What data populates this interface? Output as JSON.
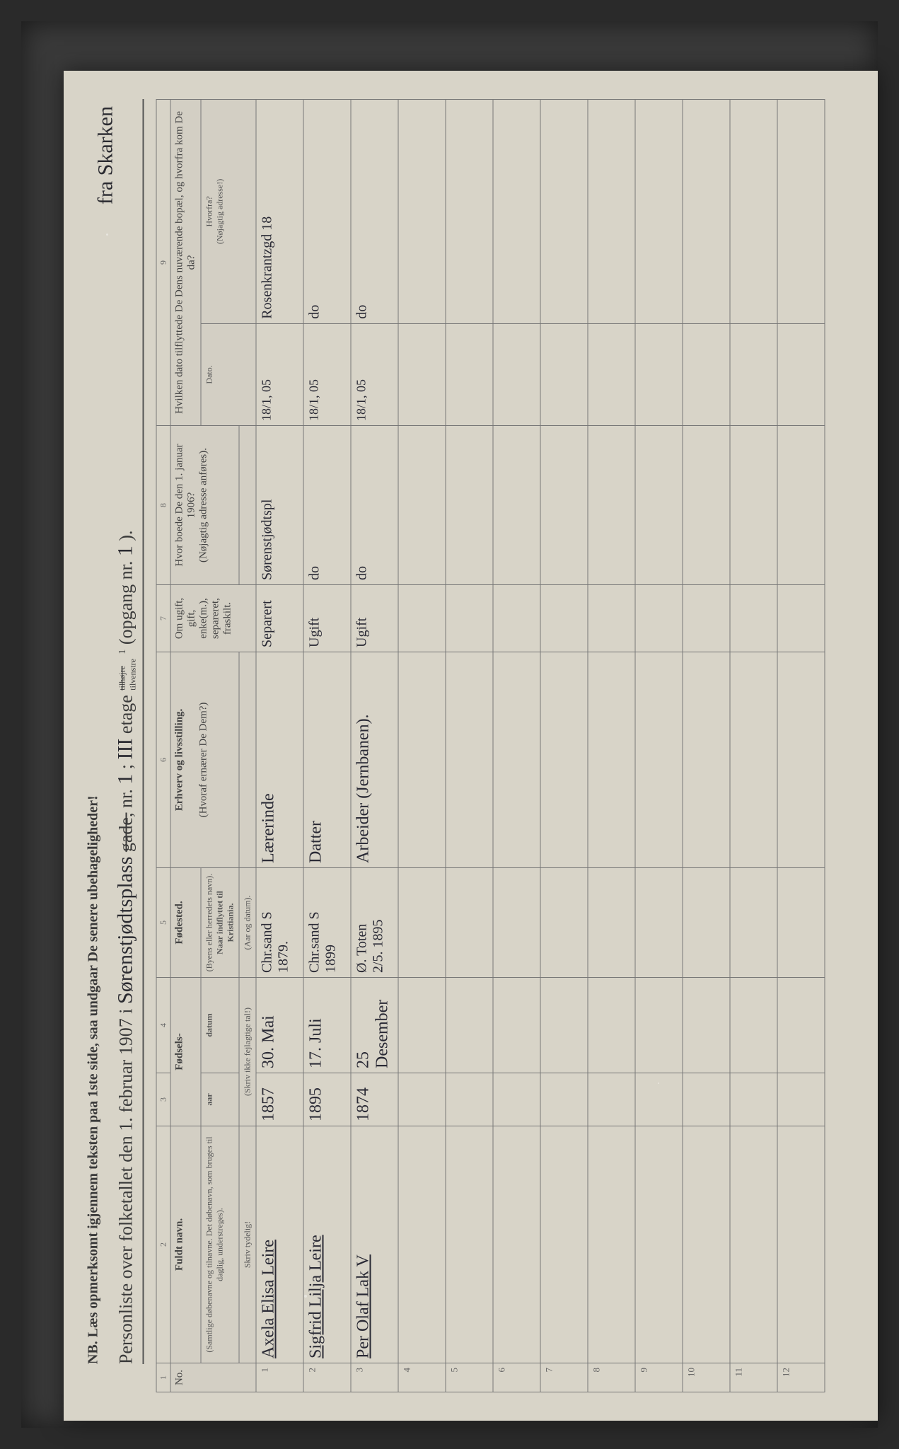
{
  "nb": "NB. Læs opmerksomt igjennem teksten paa 1ste side, saa undgaar De senere ubehageligheder!",
  "title": {
    "prefix": "Personliste over folketallet den 1. februar 1907 i ",
    "street_hand": "Sørenstjødtsplass",
    "gade_strike": "gade,",
    "nr_label": " nr. ",
    "nr_hand": "1",
    "semicolon": " ; ",
    "etage_hand": "III",
    "etage_label": " etage ",
    "tilhoire_strike": "tilhøjre",
    "tilvenstre": "tilvenstre",
    "opgang_label": " (opgang nr. ",
    "opgang_hand": "1",
    "opgang_close": " ).",
    "annotation": "fra Skarken"
  },
  "columns": {
    "c1": "1",
    "c2": "2",
    "c3": "3",
    "c4": "4",
    "c5": "5",
    "c6": "6",
    "c7": "7",
    "c8": "8",
    "c9": "9",
    "no": "No.",
    "name": "Fuldt navn.",
    "name_sub": "(Samtlige døbenavne og tilnavne. Det døbenavn, som bruges til daglig, understreges).",
    "name_skriv": "Skriv tydelig!",
    "birth": "Fødsels-",
    "birth_yr": "aar",
    "birth_dt": "datum",
    "birth_sub": "(Skriv ikke fejlagtige tal!)",
    "place": "Fødested.",
    "place_sub1": "(Byens eller herredets navn).",
    "place_sub2": "Naar indflyttet til Kristiania.",
    "place_sub3": "(Aar og datum).",
    "occ": "Erhverv og livsstilling.",
    "occ_sub": "(Hvoraf ernærer De Dem?)",
    "mar": "Om ugift, gift, enke(m.), separeret, fraskilt.",
    "addr": "Hvor boede De den 1. januar 1906?",
    "addr_sub": "(Nøjagtig adresse anføres).",
    "moved": "Hvilken dato tilflyttede De Dens nuværende bopæl, og hvorfra kom De da?",
    "moved_d": "Dato.",
    "moved_f": "Hvorfra?",
    "moved_f_sub": "(Nøjagtig adresse!)"
  },
  "rows": [
    {
      "no": "1",
      "name": "Axela Elisa Leire",
      "yr": "1857",
      "dt": "30. Mai",
      "place": "Chr.sand S\n1879.",
      "occ": "Lærerinde",
      "mar": "Separert",
      "addr": "Sørenstjødtspl",
      "mdate": "18/1, 05",
      "mfrom": "Rosenkrantzgd 18"
    },
    {
      "no": "2",
      "name": "Sigfrid Lilja Leire",
      "yr": "1895",
      "dt": "17. Juli",
      "place": "Chr.sand S\n1899",
      "occ": "Datter",
      "mar": "Ugift",
      "addr": "do",
      "mdate": "18/1, 05",
      "mfrom": "do"
    },
    {
      "no": "3",
      "name": "Per Olaf Lak  V",
      "yr": "1874",
      "dt": "25 Desember",
      "place": "Ø. Toten\n2/5. 1895",
      "occ": "Arbeider (Jernbanen).",
      "mar": "Ugift",
      "addr": "do",
      "mdate": "18/1, 05",
      "mfrom": "do"
    }
  ],
  "empty_rows": [
    "4",
    "5",
    "6",
    "7",
    "8",
    "9",
    "10",
    "11",
    "12"
  ]
}
